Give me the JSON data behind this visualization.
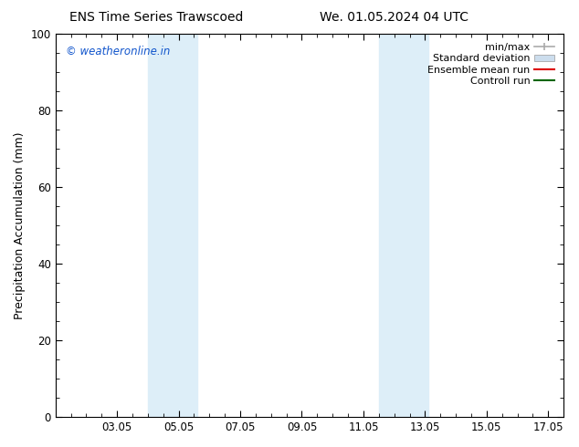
{
  "title_left": "ENS Time Series Trawscoed",
  "title_right": "We. 01.05.2024 04 UTC",
  "ylabel": "Precipitation Accumulation (mm)",
  "ylim": [
    0,
    100
  ],
  "yticks": [
    0,
    20,
    40,
    60,
    80,
    100
  ],
  "xlim": [
    1.0,
    17.5
  ],
  "xtick_labels": [
    "03.05",
    "05.05",
    "07.05",
    "09.05",
    "11.05",
    "13.05",
    "15.05",
    "17.05"
  ],
  "xtick_positions": [
    3,
    5,
    7,
    9,
    11,
    13,
    15,
    17
  ],
  "shaded_bands": [
    {
      "x_start": 4.0,
      "x_end": 4.6,
      "color": "#ddeef8"
    },
    {
      "x_start": 4.6,
      "x_end": 5.6,
      "color": "#ddeef8"
    },
    {
      "x_start": 11.5,
      "x_end": 12.1,
      "color": "#ddeef8"
    },
    {
      "x_start": 12.1,
      "x_end": 13.1,
      "color": "#ddeef8"
    }
  ],
  "copyright_text": "© weatheronline.in",
  "copyright_color": "#1155cc",
  "legend_entries": [
    {
      "label": "min/max",
      "color": "#aaaaaa",
      "lw": 1.2,
      "style": "minmax"
    },
    {
      "label": "Standard deviation",
      "color": "#ccdded",
      "lw": 6,
      "style": "bar"
    },
    {
      "label": "Ensemble mean run",
      "color": "#dd0000",
      "lw": 1.5,
      "style": "line"
    },
    {
      "label": "Controll run",
      "color": "#006600",
      "lw": 1.5,
      "style": "line"
    }
  ],
  "bg_color": "#ffffff",
  "plot_bg_color": "#ffffff",
  "spine_color": "#aaaaaa",
  "title_fontsize": 10,
  "label_fontsize": 9,
  "tick_fontsize": 8.5,
  "legend_fontsize": 8
}
